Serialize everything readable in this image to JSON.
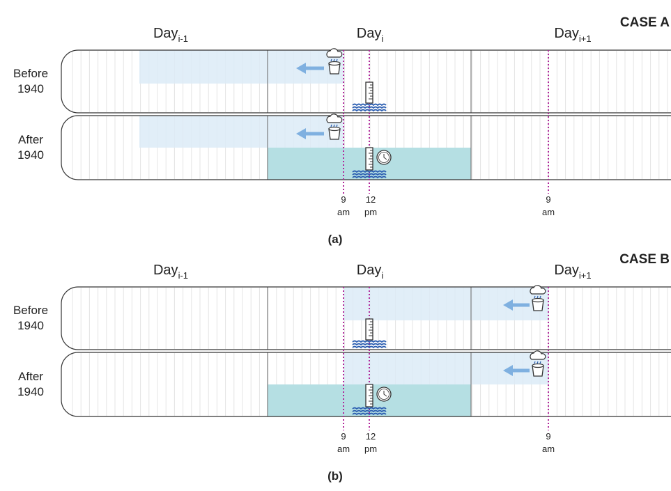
{
  "panels": [
    {
      "case": "CASE A",
      "days": [
        {
          "label": "Day",
          "sub": "i-1"
        },
        {
          "label": "Day",
          "sub": "i"
        },
        {
          "label": "Day",
          "sub": "i+1"
        }
      ],
      "rows": [
        [
          "Before",
          "1940"
        ],
        [
          "After",
          "1940"
        ]
      ],
      "times": [
        [
          "9",
          "am"
        ],
        [
          "12",
          "pm"
        ],
        [
          "9",
          "am"
        ]
      ],
      "caption": "(a)"
    },
    {
      "case": "CASE B",
      "days": [
        {
          "label": "Day",
          "sub": "i-1"
        },
        {
          "label": "Day",
          "sub": "i"
        },
        {
          "label": "Day",
          "sub": "i+1"
        }
      ],
      "rows": [
        [
          "Before",
          "1940"
        ],
        [
          "After",
          "1940"
        ]
      ],
      "times": [
        [
          "9",
          "am"
        ],
        [
          "12",
          "pm"
        ],
        [
          "9",
          "am"
        ]
      ],
      "caption": "(b)"
    }
  ]
}
